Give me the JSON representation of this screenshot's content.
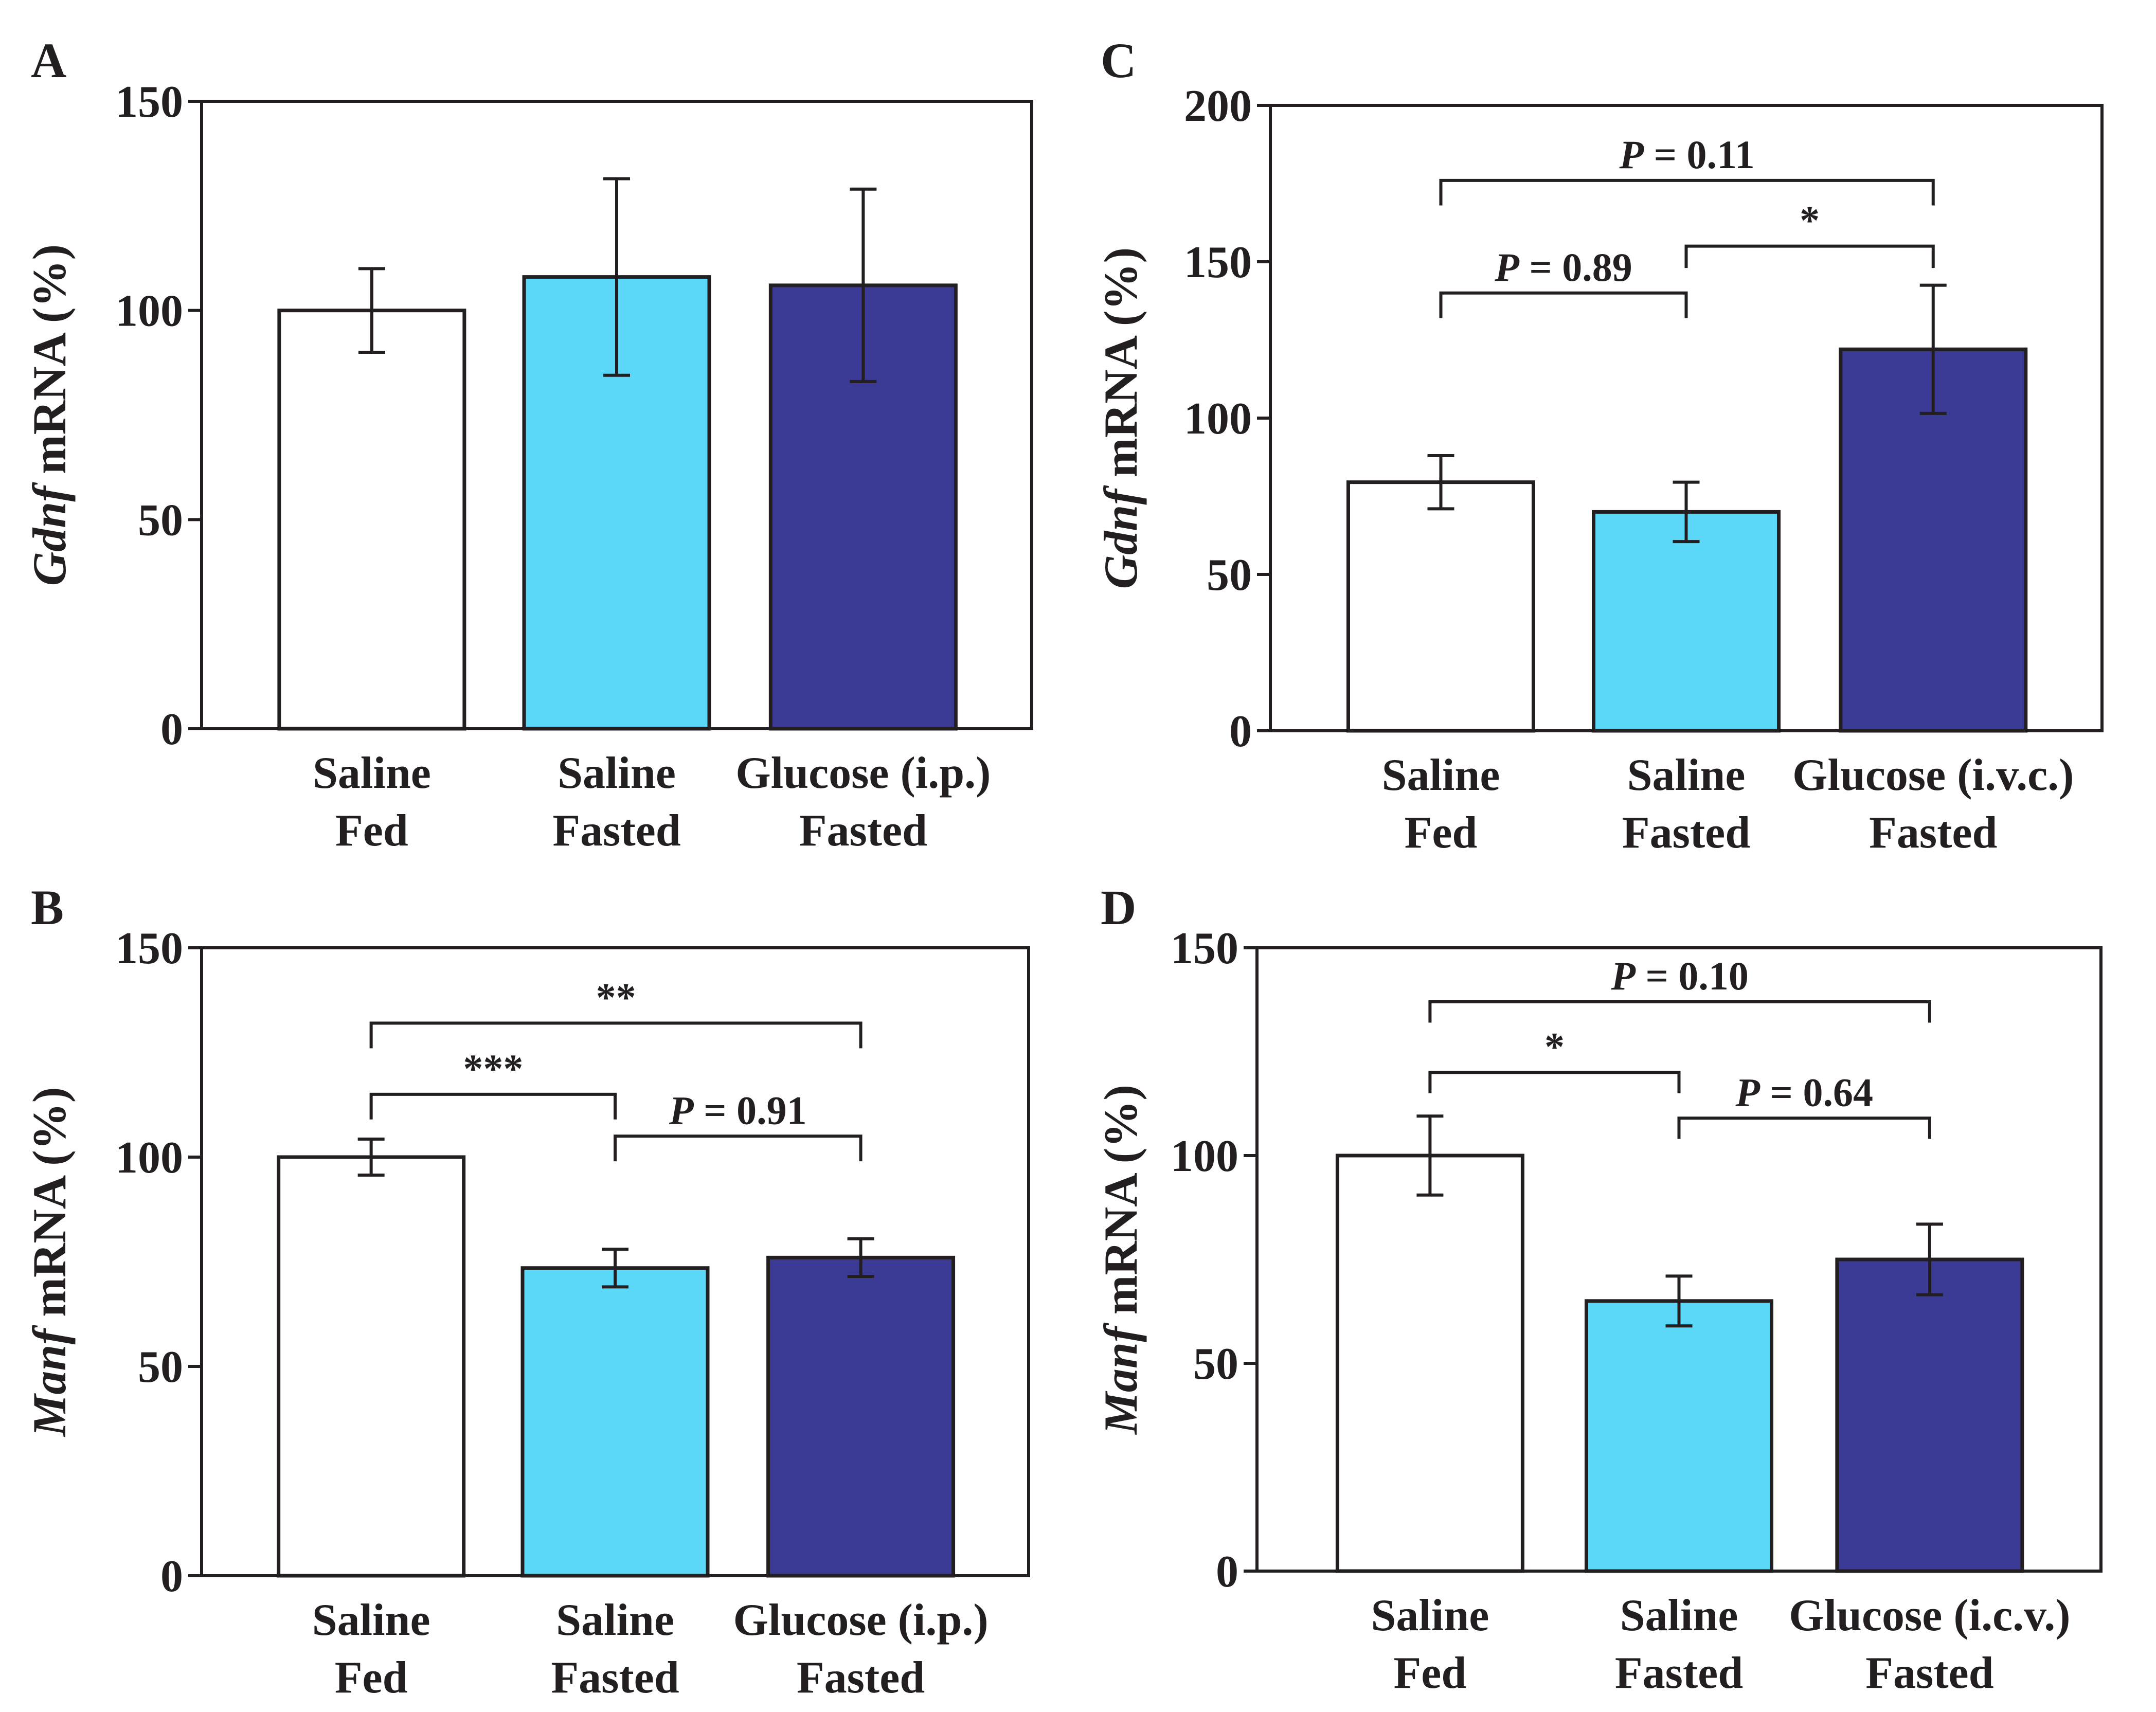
{
  "figure": {
    "colors": {
      "fed": "#ffffff",
      "saline_fasted": "#5bd8f7",
      "glucose_fasted": "#3b3b96",
      "ink": "#231f20"
    }
  },
  "chart_data": [
    {
      "panel": "A",
      "type": "bar",
      "categories": [
        [
          "Saline",
          "Fed"
        ],
        [
          "Saline",
          "Fasted"
        ],
        [
          "Glucose (i.p.)",
          "Fasted"
        ]
      ],
      "ylabel_italic": "Gdnf",
      "ylabel_rest": " mRNA (%)",
      "ylim": [
        0,
        150
      ],
      "yticks": [
        0,
        50,
        100,
        150
      ],
      "values": [
        100,
        108,
        106
      ],
      "errors": [
        10,
        23.5,
        23
      ],
      "comparisons": []
    },
    {
      "panel": "B",
      "type": "bar",
      "categories": [
        [
          "Saline",
          "Fed"
        ],
        [
          "Saline",
          "Fasted"
        ],
        [
          "Glucose (i.p.)",
          "Fasted"
        ]
      ],
      "ylabel_italic": "Manf",
      "ylabel_rest": " mRNA (%)",
      "ylim": [
        0,
        150
      ],
      "yticks": [
        0,
        50,
        100,
        150
      ],
      "values": [
        100,
        73.5,
        76
      ],
      "errors": [
        4.3,
        4.5,
        4.5
      ],
      "comparisons": [
        {
          "from": 0,
          "to": 2,
          "level": 132,
          "drop": 6,
          "italic": "",
          "text": "**"
        },
        {
          "from": 0,
          "to": 1,
          "level": 115,
          "drop": 6,
          "italic": "",
          "text": "***"
        },
        {
          "from": 1,
          "to": 2,
          "level": 105,
          "drop": 6,
          "italic": "P",
          "text": " = 0.91"
        }
      ]
    },
    {
      "panel": "C",
      "type": "bar",
      "categories": [
        [
          "Saline",
          "Fed"
        ],
        [
          "Saline",
          "Fasted"
        ],
        [
          "Glucose (i.v.c.)",
          "Fasted"
        ]
      ],
      "ylabel_italic": "Gdnf",
      "ylabel_rest": " mRNA (%)",
      "ylim": [
        0,
        200
      ],
      "yticks": [
        0,
        50,
        100,
        150,
        200
      ],
      "values": [
        79.5,
        70,
        122
      ],
      "errors": [
        8.5,
        9.5,
        20.5
      ],
      "comparisons": [
        {
          "from": 0,
          "to": 2,
          "level": 176,
          "drop": 8,
          "italic": "P",
          "text": " = 0.11"
        },
        {
          "from": 1,
          "to": 2,
          "level": 155,
          "drop": 7,
          "italic": "",
          "text": "*"
        },
        {
          "from": 0,
          "to": 1,
          "level": 140,
          "drop": 8,
          "italic": "P",
          "text": " = 0.89"
        }
      ]
    },
    {
      "panel": "D",
      "type": "bar",
      "categories": [
        [
          "Saline",
          "Fed"
        ],
        [
          "Saline",
          "Fasted"
        ],
        [
          "Glucose (i.c.v.)",
          "Fasted"
        ]
      ],
      "ylabel_italic": "Manf",
      "ylabel_rest": " mRNA (%)",
      "ylim": [
        0,
        150
      ],
      "yticks": [
        0,
        50,
        100,
        150
      ],
      "values": [
        100,
        65,
        75
      ],
      "errors": [
        9.5,
        6,
        8.5
      ],
      "comparisons": [
        {
          "from": 0,
          "to": 2,
          "level": 137,
          "drop": 5,
          "italic": "P",
          "text": " = 0.10"
        },
        {
          "from": 0,
          "to": 1,
          "level": 120,
          "drop": 5,
          "italic": "",
          "text": "*"
        },
        {
          "from": 1,
          "to": 2,
          "level": 109,
          "drop": 5,
          "italic": "P",
          "text": " = 0.64"
        }
      ]
    }
  ]
}
